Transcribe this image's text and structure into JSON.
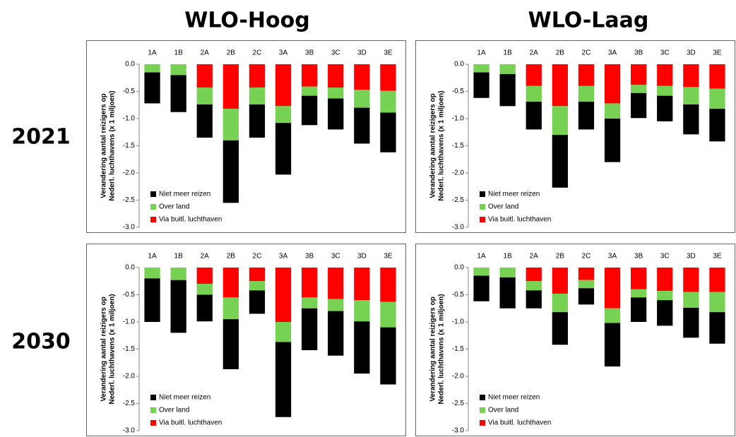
{
  "columns": [
    "WLO-Hoog",
    "WLO-Laag"
  ],
  "rows": [
    "2021",
    "2030"
  ],
  "chart_data": [
    {
      "type": "bar",
      "stacked": true,
      "ylabel": [
        "Verandering aantal  reizigers op",
        "Nederl. luchthavens (x 1 miljoen)"
      ],
      "categories": [
        "1A",
        "1B",
        "2A",
        "2B",
        "2C",
        "3A",
        "3B",
        "3C",
        "3D",
        "3E"
      ],
      "ylim": [
        -3,
        0
      ],
      "yticks": [
        {
          "value": 0,
          "label": "0.0"
        },
        -0.5,
        {
          "value": -1,
          "label": "-1.0"
        },
        -1.5,
        {
          "value": -2,
          "label": "-2.0"
        },
        -2.5,
        {
          "value": -3,
          "label": "-3.0"
        }
      ],
      "series": [
        {
          "name": "Niet meer reizen",
          "color": "#000000",
          "values": [
            -0.57,
            -0.68,
            -0.61,
            -1.15,
            -0.61,
            -0.95,
            -0.54,
            -0.57,
            -0.66,
            -0.73
          ]
        },
        {
          "name": "Over land",
          "color": "#77d152",
          "values": [
            -0.15,
            -0.2,
            -0.31,
            -0.58,
            -0.31,
            -0.31,
            -0.17,
            -0.2,
            -0.33,
            -0.4
          ]
        },
        {
          "name": "Via buitl. luchthaven",
          "color": "#ff0000",
          "values": [
            0,
            0,
            -0.43,
            -0.82,
            -0.43,
            -0.77,
            -0.41,
            -0.43,
            -0.47,
            -0.49
          ]
        }
      ]
    },
    {
      "type": "bar",
      "stacked": true,
      "ylabel": [
        "Verandering aantal  reizigers op",
        "Nederl. luchthavens (x 1 miljoen)"
      ],
      "categories": [
        "1A",
        "1B",
        "2A",
        "2B",
        "2C",
        "3A",
        "3B",
        "3C",
        "3D",
        "3E"
      ],
      "ylim": [
        -3,
        0
      ],
      "yticks": [
        {
          "value": 0,
          "label": "0.0"
        },
        -0.5,
        {
          "value": -1,
          "label": "-1.0"
        },
        -1.5,
        {
          "value": -2,
          "label": "-2.0"
        },
        -2.5,
        {
          "value": -3,
          "label": "-3.0"
        }
      ],
      "series": [
        {
          "name": "Niet meer reizen",
          "color": "#000000",
          "values": [
            -0.47,
            -0.59,
            -0.51,
            -0.97,
            -0.51,
            -0.8,
            -0.46,
            -0.47,
            -0.55,
            -0.6
          ]
        },
        {
          "name": "Over land",
          "color": "#77d152",
          "values": [
            -0.15,
            -0.18,
            -0.29,
            -0.53,
            -0.29,
            -0.28,
            -0.15,
            -0.18,
            -0.32,
            -0.37
          ]
        },
        {
          "name": "Via buitl. luchthaven",
          "color": "#ff0000",
          "values": [
            0,
            0,
            -0.4,
            -0.77,
            -0.4,
            -0.72,
            -0.38,
            -0.4,
            -0.42,
            -0.45
          ]
        }
      ]
    },
    {
      "type": "bar",
      "stacked": true,
      "ylabel": [
        "Verandering aantal  reizigers op",
        "Nederl. luchthavens (x 1 miljoen)"
      ],
      "categories": [
        "1A",
        "1B",
        "2A",
        "2B",
        "2C",
        "3A",
        "3B",
        "3C",
        "3D",
        "3E"
      ],
      "ylim": [
        -3,
        0
      ],
      "yticks": [
        {
          "value": 0,
          "label": "0.0"
        },
        -0.5,
        {
          "value": -1,
          "label": "-1.0"
        },
        -1.5,
        {
          "value": -2,
          "label": "-2.0"
        },
        -2.5,
        {
          "value": -3,
          "label": "-3.0"
        }
      ],
      "series": [
        {
          "name": "Niet meer reizen",
          "color": "#000000",
          "values": [
            -0.8,
            -0.97,
            -0.49,
            -0.92,
            -0.43,
            -1.38,
            -0.77,
            -0.82,
            -0.96,
            -1.05
          ]
        },
        {
          "name": "Over land",
          "color": "#77d152",
          "values": [
            -0.2,
            -0.23,
            -0.2,
            -0.4,
            -0.17,
            -0.37,
            -0.2,
            -0.22,
            -0.39,
            -0.47
          ]
        },
        {
          "name": "Via buitl. luchthaven",
          "color": "#ff0000",
          "values": [
            0,
            0,
            -0.3,
            -0.55,
            -0.25,
            -1.0,
            -0.55,
            -0.58,
            -0.6,
            -0.63
          ]
        }
      ]
    },
    {
      "type": "bar",
      "stacked": true,
      "ylabel": [
        "Verandering aantal  reizigers op",
        "Nederl. luchthavens (x 1 miljoen)"
      ],
      "categories": [
        "1A",
        "1B",
        "2A",
        "2B",
        "2C",
        "3A",
        "3B",
        "3C",
        "3D",
        "3E"
      ],
      "ylim": [
        -3,
        0
      ],
      "yticks": [
        {
          "value": 0,
          "label": "0.0"
        },
        -0.5,
        {
          "value": -1,
          "label": "-1.0"
        },
        -1.5,
        {
          "value": -2,
          "label": "-2.0"
        },
        -2.5,
        {
          "value": -3,
          "label": "-3.0"
        }
      ],
      "series": [
        {
          "name": "Niet meer reizen",
          "color": "#000000",
          "values": [
            -0.47,
            -0.57,
            -0.33,
            -0.6,
            -0.3,
            -0.8,
            -0.45,
            -0.47,
            -0.55,
            -0.58
          ]
        },
        {
          "name": "Over land",
          "color": "#77d152",
          "values": [
            -0.15,
            -0.18,
            -0.17,
            -0.34,
            -0.15,
            -0.27,
            -0.15,
            -0.17,
            -0.29,
            -0.37
          ]
        },
        {
          "name": "Via buitl. luchthaven",
          "color": "#ff0000",
          "values": [
            0,
            0,
            -0.25,
            -0.48,
            -0.23,
            -0.75,
            -0.4,
            -0.43,
            -0.45,
            -0.45
          ]
        }
      ]
    }
  ]
}
